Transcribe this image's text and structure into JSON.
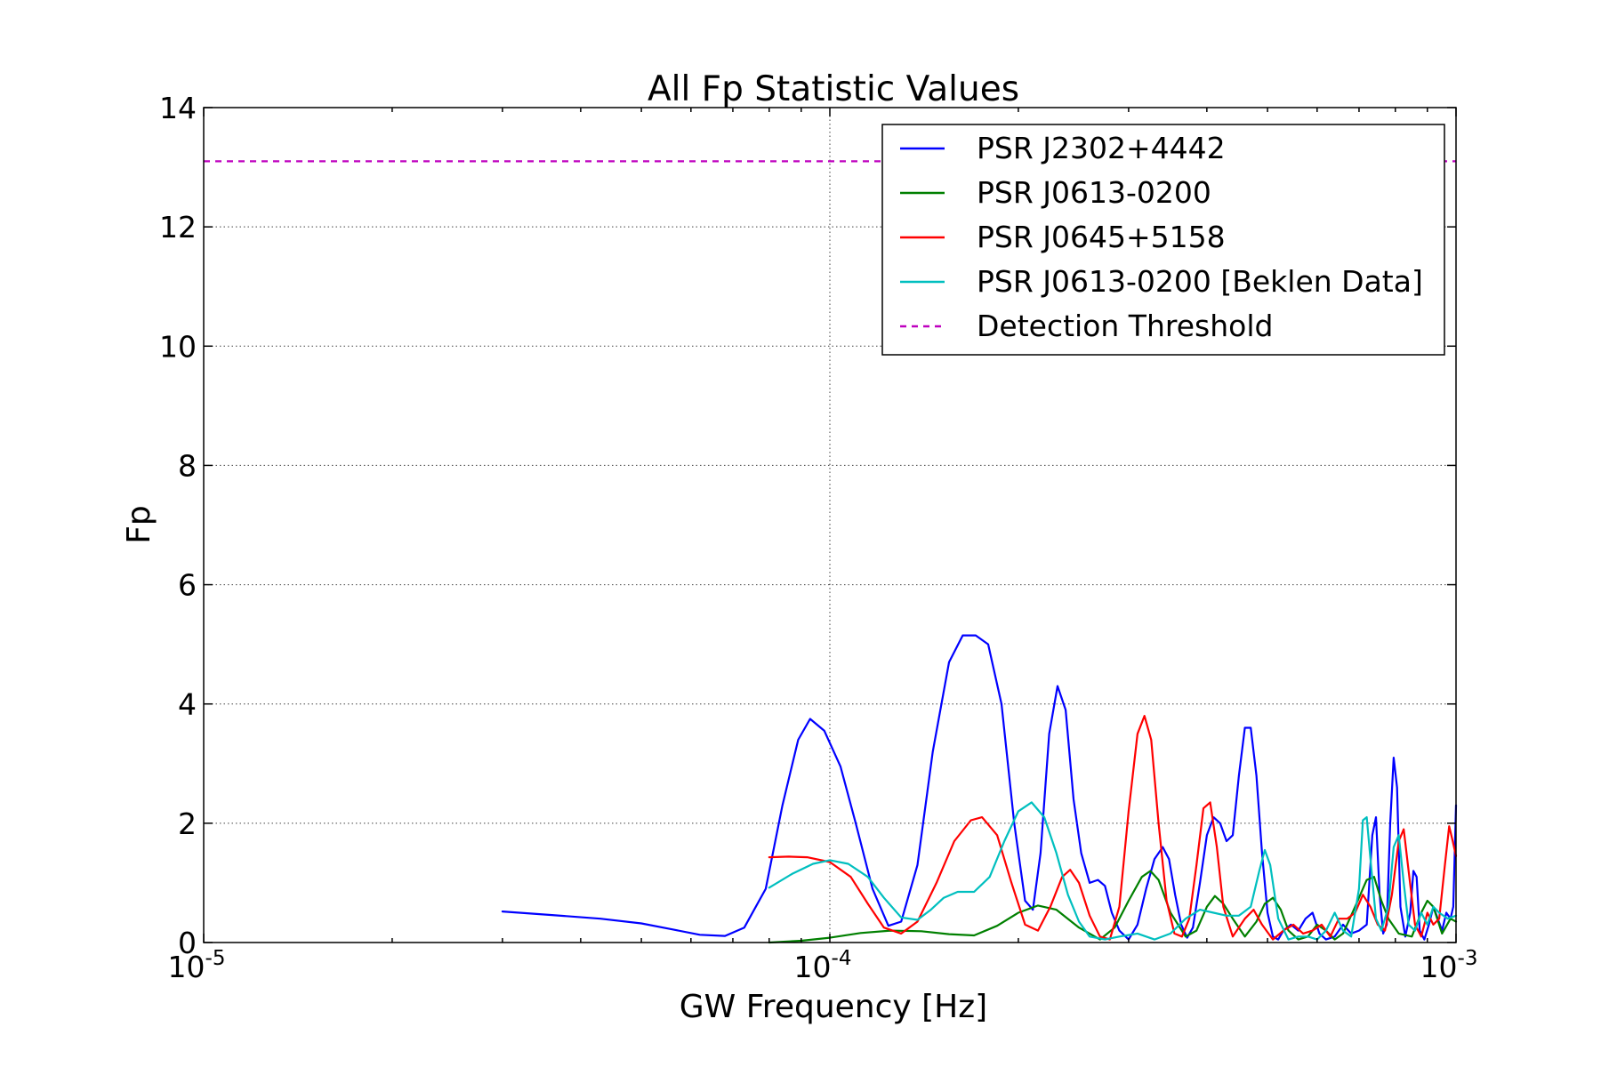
{
  "chart_data": {
    "type": "line",
    "title": "All Fp Statistic Values",
    "xlabel": "GW Frequency [Hz]",
    "ylabel": "Fp",
    "xscale": "log",
    "xlim": [
      1e-05,
      0.001
    ],
    "ylim": [
      0,
      14
    ],
    "grid": true,
    "legend_position": "top-right",
    "x_ticks": [
      {
        "value": 1e-05,
        "base": "10",
        "exp": "-5"
      },
      {
        "value": 0.0001,
        "base": "10",
        "exp": "-4"
      },
      {
        "value": 0.001,
        "base": "10",
        "exp": "-3"
      }
    ],
    "y_ticks": [
      {
        "value": 0,
        "label": "0"
      },
      {
        "value": 2,
        "label": "2"
      },
      {
        "value": 4,
        "label": "4"
      },
      {
        "value": 6,
        "label": "6"
      },
      {
        "value": 8,
        "label": "8"
      },
      {
        "value": 10,
        "label": "10"
      },
      {
        "value": 12,
        "label": "12"
      },
      {
        "value": 14,
        "label": "14"
      }
    ],
    "series": [
      {
        "name": "PSR J2302+4442",
        "color": "#0000ff",
        "dashed": false,
        "points": [
          [
            3e-05,
            0.52
          ],
          [
            3.6e-05,
            0.46
          ],
          [
            4.3e-05,
            0.4
          ],
          [
            5e-05,
            0.32
          ],
          [
            5.6e-05,
            0.22
          ],
          [
            6.2e-05,
            0.13
          ],
          [
            6.8e-05,
            0.11
          ],
          [
            7.3e-05,
            0.25
          ],
          [
            7.9e-05,
            0.9
          ],
          [
            8.4e-05,
            2.3
          ],
          [
            8.9e-05,
            3.4
          ],
          [
            9.3e-05,
            3.75
          ],
          [
            9.8e-05,
            3.55
          ],
          [
            0.000104,
            2.95
          ],
          [
            0.00011,
            2.0
          ],
          [
            0.000117,
            0.9
          ],
          [
            0.000124,
            0.28
          ],
          [
            0.00013,
            0.35
          ],
          [
            0.000138,
            1.3
          ],
          [
            0.000146,
            3.2
          ],
          [
            0.000155,
            4.7
          ],
          [
            0.000163,
            5.15
          ],
          [
            0.000171,
            5.15
          ],
          [
            0.000179,
            5.0
          ],
          [
            0.000188,
            4.0
          ],
          [
            0.000197,
            2.0
          ],
          [
            0.000205,
            0.7
          ],
          [
            0.000211,
            0.55
          ],
          [
            0.000217,
            1.5
          ],
          [
            0.000224,
            3.5
          ],
          [
            0.000231,
            4.3
          ],
          [
            0.000238,
            3.9
          ],
          [
            0.000245,
            2.4
          ],
          [
            0.000252,
            1.5
          ],
          [
            0.00026,
            1.0
          ],
          [
            0.000268,
            1.05
          ],
          [
            0.000275,
            0.95
          ],
          [
            0.000282,
            0.5
          ],
          [
            0.00029,
            0.2
          ],
          [
            0.0003,
            0.05
          ],
          [
            0.00031,
            0.3
          ],
          [
            0.00032,
            0.9
          ],
          [
            0.00033,
            1.4
          ],
          [
            0.00034,
            1.6
          ],
          [
            0.000348,
            1.4
          ],
          [
            0.000356,
            0.8
          ],
          [
            0.000364,
            0.3
          ],
          [
            0.000372,
            0.08
          ],
          [
            0.00038,
            0.25
          ],
          [
            0.00039,
            1.0
          ],
          [
            0.0004,
            1.8
          ],
          [
            0.00041,
            2.1
          ],
          [
            0.00042,
            2.0
          ],
          [
            0.00043,
            1.7
          ],
          [
            0.00044,
            1.8
          ],
          [
            0.00045,
            2.8
          ],
          [
            0.00046,
            3.6
          ],
          [
            0.00047,
            3.6
          ],
          [
            0.00048,
            2.8
          ],
          [
            0.00049,
            1.5
          ],
          [
            0.0005,
            0.5
          ],
          [
            0.00051,
            0.1
          ],
          [
            0.00052,
            0.05
          ],
          [
            0.00053,
            0.2
          ],
          [
            0.000545,
            0.3
          ],
          [
            0.00056,
            0.2
          ],
          [
            0.000575,
            0.4
          ],
          [
            0.00059,
            0.5
          ],
          [
            0.000605,
            0.15
          ],
          [
            0.00062,
            0.05
          ],
          [
            0.00064,
            0.1
          ],
          [
            0.00066,
            0.3
          ],
          [
            0.00068,
            0.15
          ],
          [
            0.0007,
            0.2
          ],
          [
            0.00072,
            0.3
          ],
          [
            0.000735,
            1.8
          ],
          [
            0.000745,
            2.1
          ],
          [
            0.000755,
            0.8
          ],
          [
            0.000765,
            0.15
          ],
          [
            0.000775,
            0.3
          ],
          [
            0.000785,
            2.0
          ],
          [
            0.000795,
            3.1
          ],
          [
            0.000805,
            2.6
          ],
          [
            0.000815,
            0.6
          ],
          [
            0.00083,
            0.1
          ],
          [
            0.000845,
            0.5
          ],
          [
            0.000855,
            1.2
          ],
          [
            0.000865,
            1.1
          ],
          [
            0.000875,
            0.2
          ],
          [
            0.00089,
            0.05
          ],
          [
            0.000905,
            0.3
          ],
          [
            0.00092,
            0.6
          ],
          [
            0.000935,
            0.4
          ],
          [
            0.00095,
            0.2
          ],
          [
            0.000965,
            0.5
          ],
          [
            0.00098,
            0.4
          ],
          [
            0.00099,
            0.6
          ],
          [
            0.001,
            2.3
          ]
        ]
      },
      {
        "name": "PSR J0613-0200",
        "color": "#008000",
        "dashed": false,
        "points": [
          [
            8e-05,
            0.0
          ],
          [
            9e-05,
            0.03
          ],
          [
            0.0001,
            0.08
          ],
          [
            0.000112,
            0.16
          ],
          [
            0.000125,
            0.2
          ],
          [
            0.00014,
            0.19
          ],
          [
            0.000155,
            0.14
          ],
          [
            0.00017,
            0.12
          ],
          [
            0.000185,
            0.28
          ],
          [
            0.0002,
            0.5
          ],
          [
            0.000215,
            0.62
          ],
          [
            0.00023,
            0.55
          ],
          [
            0.00025,
            0.25
          ],
          [
            0.00027,
            0.05
          ],
          [
            0.000285,
            0.25
          ],
          [
            0.0003,
            0.7
          ],
          [
            0.000315,
            1.1
          ],
          [
            0.000325,
            1.2
          ],
          [
            0.000335,
            1.05
          ],
          [
            0.00035,
            0.5
          ],
          [
            0.00037,
            0.1
          ],
          [
            0.000385,
            0.2
          ],
          [
            0.0004,
            0.6
          ],
          [
            0.000412,
            0.78
          ],
          [
            0.000425,
            0.65
          ],
          [
            0.00044,
            0.4
          ],
          [
            0.00046,
            0.1
          ],
          [
            0.00048,
            0.35
          ],
          [
            0.000495,
            0.65
          ],
          [
            0.00051,
            0.75
          ],
          [
            0.000525,
            0.55
          ],
          [
            0.00054,
            0.2
          ],
          [
            0.00056,
            0.05
          ],
          [
            0.00058,
            0.1
          ],
          [
            0.0006,
            0.3
          ],
          [
            0.00062,
            0.2
          ],
          [
            0.00064,
            0.05
          ],
          [
            0.00066,
            0.15
          ],
          [
            0.00069,
            0.6
          ],
          [
            0.00072,
            1.05
          ],
          [
            0.00074,
            1.1
          ],
          [
            0.00076,
            0.7
          ],
          [
            0.00078,
            0.4
          ],
          [
            0.00081,
            0.15
          ],
          [
            0.00085,
            0.1
          ],
          [
            0.00088,
            0.5
          ],
          [
            0.0009,
            0.7
          ],
          [
            0.00092,
            0.6
          ],
          [
            0.00095,
            0.15
          ],
          [
            0.00098,
            0.4
          ],
          [
            0.001,
            0.35
          ]
        ]
      },
      {
        "name": "PSR J0645+5158",
        "color": "#ff0000",
        "dashed": false,
        "points": [
          [
            8e-05,
            1.43
          ],
          [
            8.6e-05,
            1.44
          ],
          [
            9.2e-05,
            1.43
          ],
          [
            0.0001,
            1.35
          ],
          [
            0.000108,
            1.1
          ],
          [
            0.000115,
            0.65
          ],
          [
            0.000122,
            0.25
          ],
          [
            0.00013,
            0.15
          ],
          [
            0.000138,
            0.35
          ],
          [
            0.000148,
            1.0
          ],
          [
            0.000158,
            1.7
          ],
          [
            0.000168,
            2.05
          ],
          [
            0.000175,
            2.1
          ],
          [
            0.000185,
            1.8
          ],
          [
            0.000195,
            1.0
          ],
          [
            0.000205,
            0.3
          ],
          [
            0.000215,
            0.2
          ],
          [
            0.000225,
            0.6
          ],
          [
            0.000235,
            1.1
          ],
          [
            0.000242,
            1.22
          ],
          [
            0.00025,
            1.0
          ],
          [
            0.00026,
            0.45
          ],
          [
            0.00027,
            0.1
          ],
          [
            0.00028,
            0.05
          ],
          [
            0.00029,
            0.6
          ],
          [
            0.0003,
            2.2
          ],
          [
            0.00031,
            3.5
          ],
          [
            0.000318,
            3.8
          ],
          [
            0.000326,
            3.4
          ],
          [
            0.000335,
            2.0
          ],
          [
            0.000345,
            0.7
          ],
          [
            0.000355,
            0.15
          ],
          [
            0.000365,
            0.1
          ],
          [
            0.000375,
            0.4
          ],
          [
            0.000385,
            1.3
          ],
          [
            0.000395,
            2.25
          ],
          [
            0.000405,
            2.35
          ],
          [
            0.000415,
            1.6
          ],
          [
            0.000425,
            0.6
          ],
          [
            0.00044,
            0.1
          ],
          [
            0.00046,
            0.4
          ],
          [
            0.000475,
            0.55
          ],
          [
            0.00049,
            0.3
          ],
          [
            0.00051,
            0.05
          ],
          [
            0.00053,
            0.2
          ],
          [
            0.00055,
            0.3
          ],
          [
            0.00057,
            0.15
          ],
          [
            0.00059,
            0.2
          ],
          [
            0.00061,
            0.3
          ],
          [
            0.00063,
            0.1
          ],
          [
            0.00065,
            0.4
          ],
          [
            0.00067,
            0.4
          ],
          [
            0.00069,
            0.5
          ],
          [
            0.00071,
            0.8
          ],
          [
            0.00073,
            0.6
          ],
          [
            0.00075,
            0.3
          ],
          [
            0.00077,
            0.2
          ],
          [
            0.00079,
            0.8
          ],
          [
            0.00081,
            1.7
          ],
          [
            0.000825,
            1.9
          ],
          [
            0.00084,
            1.2
          ],
          [
            0.00086,
            0.3
          ],
          [
            0.00088,
            0.1
          ],
          [
            0.0009,
            0.5
          ],
          [
            0.00092,
            0.3
          ],
          [
            0.00094,
            0.4
          ],
          [
            0.00096,
            1.3
          ],
          [
            0.000975,
            1.95
          ],
          [
            0.000988,
            1.7
          ],
          [
            0.001,
            1.45
          ]
        ]
      },
      {
        "name": "PSR J0613-0200 [Beklen Data]",
        "color": "#00bfbf",
        "dashed": false,
        "points": [
          [
            8e-05,
            0.92
          ],
          [
            8.7e-05,
            1.15
          ],
          [
            9.4e-05,
            1.32
          ],
          [
            0.0001,
            1.38
          ],
          [
            0.000107,
            1.32
          ],
          [
            0.000115,
            1.1
          ],
          [
            0.000122,
            0.75
          ],
          [
            0.00013,
            0.42
          ],
          [
            0.000138,
            0.38
          ],
          [
            0.000145,
            0.55
          ],
          [
            0.000152,
            0.75
          ],
          [
            0.00016,
            0.85
          ],
          [
            0.00017,
            0.85
          ],
          [
            0.00018,
            1.1
          ],
          [
            0.00019,
            1.7
          ],
          [
            0.0002,
            2.2
          ],
          [
            0.00021,
            2.35
          ],
          [
            0.00022,
            2.1
          ],
          [
            0.00023,
            1.5
          ],
          [
            0.00024,
            0.8
          ],
          [
            0.00025,
            0.35
          ],
          [
            0.00026,
            0.1
          ],
          [
            0.000275,
            0.05
          ],
          [
            0.00029,
            0.1
          ],
          [
            0.00031,
            0.15
          ],
          [
            0.00033,
            0.05
          ],
          [
            0.00035,
            0.15
          ],
          [
            0.00037,
            0.4
          ],
          [
            0.00039,
            0.55
          ],
          [
            0.00041,
            0.5
          ],
          [
            0.00043,
            0.45
          ],
          [
            0.00045,
            0.45
          ],
          [
            0.00047,
            0.6
          ],
          [
            0.000485,
            1.2
          ],
          [
            0.000495,
            1.55
          ],
          [
            0.000505,
            1.3
          ],
          [
            0.00052,
            0.4
          ],
          [
            0.00054,
            0.05
          ],
          [
            0.00056,
            0.1
          ],
          [
            0.00058,
            0.1
          ],
          [
            0.0006,
            0.05
          ],
          [
            0.00062,
            0.2
          ],
          [
            0.00064,
            0.5
          ],
          [
            0.00066,
            0.2
          ],
          [
            0.00068,
            0.1
          ],
          [
            0.0007,
            0.9
          ],
          [
            0.00071,
            2.05
          ],
          [
            0.00072,
            2.1
          ],
          [
            0.00073,
            1.4
          ],
          [
            0.000745,
            0.4
          ],
          [
            0.00076,
            0.2
          ],
          [
            0.00078,
            0.6
          ],
          [
            0.000795,
            1.6
          ],
          [
            0.00081,
            1.8
          ],
          [
            0.000825,
            1.0
          ],
          [
            0.00084,
            0.3
          ],
          [
            0.00086,
            0.2
          ],
          [
            0.00088,
            0.5
          ],
          [
            0.0009,
            0.3
          ],
          [
            0.00092,
            0.6
          ],
          [
            0.00094,
            0.5
          ],
          [
            0.00097,
            0.4
          ],
          [
            0.001,
            0.45
          ]
        ]
      },
      {
        "name": "Detection Threshold",
        "color": "#bf00bf",
        "dashed": true,
        "points": [
          [
            1e-05,
            13.1
          ],
          [
            0.001,
            13.1
          ]
        ]
      }
    ]
  }
}
